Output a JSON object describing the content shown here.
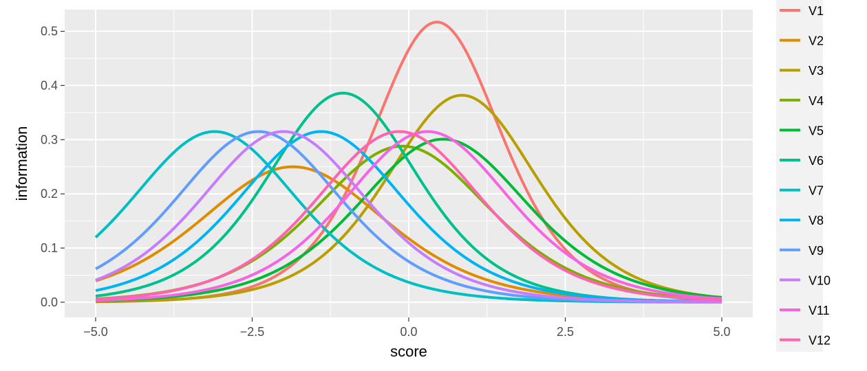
{
  "chart_data": {
    "type": "line",
    "title": "",
    "xlabel": "score",
    "ylabel": "information",
    "xlim": [
      -5,
      5
    ],
    "ylim": [
      -0.028,
      0.54
    ],
    "x_ticks": [
      -5.0,
      -2.5,
      0.0,
      2.5,
      5.0
    ],
    "x_tick_labels": [
      "−5.0",
      "−2.5",
      "0.0",
      "2.5",
      "5.0"
    ],
    "y_ticks": [
      0.0,
      0.1,
      0.2,
      0.3,
      0.4,
      0.5
    ],
    "y_tick_labels": [
      "0.0",
      "0.1",
      "0.2",
      "0.3",
      "0.4",
      "0.5"
    ],
    "grid": true,
    "legend_position": "right",
    "background": "#ebebeb",
    "grid_color": "#ffffff",
    "series": [
      {
        "name": "V1",
        "color": "#F8766D",
        "peak_x": 0.45,
        "peak_info": 0.517,
        "slope": 1.44
      },
      {
        "name": "V2",
        "color": "#DE8C00",
        "peak_x": -1.85,
        "peak_info": 0.25,
        "slope": 1.0
      },
      {
        "name": "V3",
        "color": "#B79F00",
        "peak_x": 0.85,
        "peak_info": 0.382,
        "slope": 1.24
      },
      {
        "name": "V4",
        "color": "#7CAE00",
        "peak_x": -0.1,
        "peak_info": 0.288,
        "slope": 1.07
      },
      {
        "name": "V5",
        "color": "#00BA38",
        "peak_x": 0.55,
        "peak_info": 0.301,
        "slope": 1.1
      },
      {
        "name": "V6",
        "color": "#00C08B",
        "peak_x": -1.05,
        "peak_info": 0.386,
        "slope": 1.24
      },
      {
        "name": "V7",
        "color": "#00BFC4",
        "peak_x": -3.1,
        "peak_info": 0.315,
        "slope": 1.12
      },
      {
        "name": "V8",
        "color": "#00B4F0",
        "peak_x": -1.4,
        "peak_info": 0.315,
        "slope": 1.12
      },
      {
        "name": "V9",
        "color": "#619CFF",
        "peak_x": -2.4,
        "peak_info": 0.315,
        "slope": 1.12
      },
      {
        "name": "V10",
        "color": "#C77CFF",
        "peak_x": -2.0,
        "peak_info": 0.315,
        "slope": 1.12
      },
      {
        "name": "V11",
        "color": "#F564E3",
        "peak_x": 0.3,
        "peak_info": 0.315,
        "slope": 1.12
      },
      {
        "name": "V12",
        "color": "#FF64B0",
        "peak_x": -0.15,
        "peak_info": 0.315,
        "slope": 1.12
      }
    ]
  }
}
